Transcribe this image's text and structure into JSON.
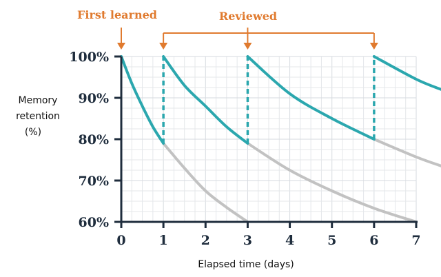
{
  "chart_data": {
    "type": "line",
    "title": "",
    "xlabel": "Elapsed time (days)",
    "ylabel_lines": [
      "Memory",
      "retention",
      "(%)"
    ],
    "xlim": [
      0,
      7
    ],
    "ylim": [
      60,
      100
    ],
    "x_ticks": [
      "0",
      "1",
      "2",
      "3",
      "4",
      "5",
      "6",
      "7"
    ],
    "y_ticks": [
      "60%",
      "70%",
      "80%",
      "90%",
      "100%"
    ],
    "grid": true,
    "annotations": {
      "first": "First learned",
      "reviewed": "Reviewed"
    },
    "review_days": [
      1,
      3,
      6
    ],
    "first_learned_day": 0,
    "retained_curves": [
      [
        [
          0,
          100
        ],
        [
          0.25,
          93.5
        ],
        [
          0.5,
          88
        ],
        [
          0.75,
          83
        ],
        [
          1,
          79
        ]
      ],
      [
        [
          1,
          100
        ],
        [
          1.5,
          93
        ],
        [
          2,
          88
        ],
        [
          2.5,
          83
        ],
        [
          3,
          79
        ]
      ],
      [
        [
          3,
          100
        ],
        [
          4,
          91
        ],
        [
          5,
          85
        ],
        [
          6,
          80
        ]
      ],
      [
        [
          6,
          100
        ],
        [
          7,
          94.5
        ],
        [
          7.6,
          92
        ]
      ]
    ],
    "forgetting_curves": [
      [
        [
          1,
          79
        ],
        [
          1.5,
          73
        ],
        [
          2,
          67.5
        ],
        [
          2.5,
          63.5
        ],
        [
          3,
          60
        ]
      ],
      [
        [
          3,
          79
        ],
        [
          4,
          72.5
        ],
        [
          5,
          67.5
        ],
        [
          6,
          63.3
        ],
        [
          7,
          60
        ]
      ],
      [
        [
          6,
          80
        ],
        [
          7,
          75.7
        ],
        [
          7.6,
          73.5
        ]
      ]
    ],
    "drops": [
      [
        1,
        79,
        100
      ],
      [
        3,
        79,
        100
      ],
      [
        6,
        80,
        100
      ]
    ],
    "colors": {
      "retained": "#2ba7ae",
      "forgetting": "#c2c2c2",
      "annotation": "#e07a2e",
      "axis": "#1f2d3d",
      "grid": "#e4e7ea"
    }
  }
}
